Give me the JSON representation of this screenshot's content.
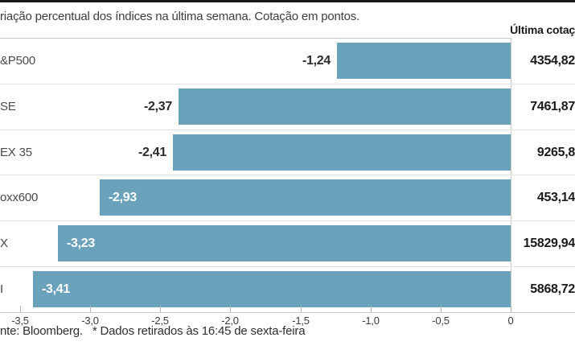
{
  "title": "riação percentual dos índices na última semana. Cotação em pontos.",
  "right_column_header": "Última cotaç",
  "footer": {
    "source": "nte: Bloomberg.",
    "note": "* Dados retirados às 16:45 de sexta-feira"
  },
  "colors": {
    "bar": "#6AA1BB",
    "frame_line": "#c8c8c8",
    "row_separator": "#e0e0e0",
    "top_rule": "#1a1a1a",
    "value_inside_text": "#ffffff",
    "value_outside_text": "#2b2b2b"
  },
  "chart_data": {
    "type": "bar",
    "orientation": "horizontal",
    "title": "riação percentual dos índices na última semana. Cotação em pontos.",
    "categories": [
      "&P500",
      "SE",
      "EX 35",
      "oxx600",
      "X",
      "I"
    ],
    "values": [
      -1.24,
      -2.37,
      -2.41,
      -2.93,
      -3.23,
      -3.41
    ],
    "value_labels": [
      "-1,24",
      "-2,37",
      "-2,41",
      "-2,93",
      "-3,23",
      "-3,41"
    ],
    "value_label_inside_bar": [
      false,
      false,
      false,
      true,
      true,
      true
    ],
    "last_quote_header": "Última cotaç",
    "last_quotes": [
      "4354,82",
      "7461,87",
      "9265,8",
      "453,14",
      "15829,94",
      "5868,72"
    ],
    "x_ticks": [
      "-3,5",
      "-3,0",
      "-2,5",
      "-2,0",
      "-1,5",
      "-1,0",
      "-0,5",
      "0"
    ],
    "x_tick_values": [
      -3.5,
      -3.0,
      -2.5,
      -2.0,
      -1.5,
      -1.0,
      -0.5,
      0
    ],
    "xlim": [
      -3.65,
      0
    ],
    "grid": false,
    "legend": "none"
  }
}
